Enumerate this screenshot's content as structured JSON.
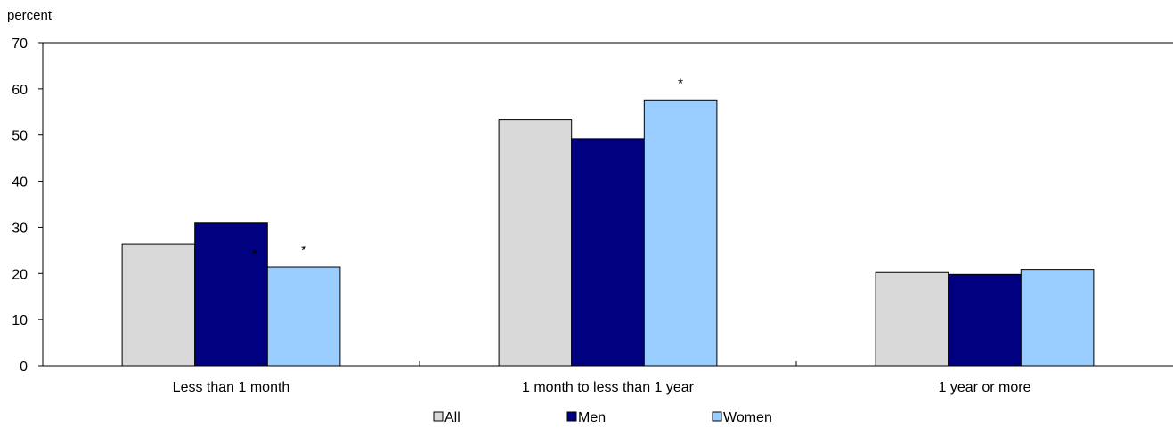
{
  "chart_data": {
    "type": "bar",
    "ylabel": "percent",
    "ylim": [
      0,
      70
    ],
    "yticks": [
      0,
      10,
      20,
      30,
      40,
      50,
      60,
      70
    ],
    "grid": false,
    "legend_position": "bottom-center",
    "categories": [
      "Less than 1 month",
      "1 month to less than 1 year",
      "1 year or more"
    ],
    "series": [
      {
        "name": "All",
        "color": "#d9d9d9",
        "values": [
          26.4,
          53.3,
          20.2
        ]
      },
      {
        "name": "Men",
        "color": "#000080",
        "values": [
          30.9,
          49.2,
          19.8
        ]
      },
      {
        "name": "Women",
        "color": "#99ccff",
        "values": [
          21.4,
          57.6,
          20.9
        ]
      }
    ],
    "annotations": [
      {
        "category": 0,
        "series": 1,
        "text": "*"
      },
      {
        "category": 0,
        "series": 2,
        "text": "*"
      },
      {
        "category": 1,
        "series": 2,
        "text": "*"
      }
    ]
  }
}
